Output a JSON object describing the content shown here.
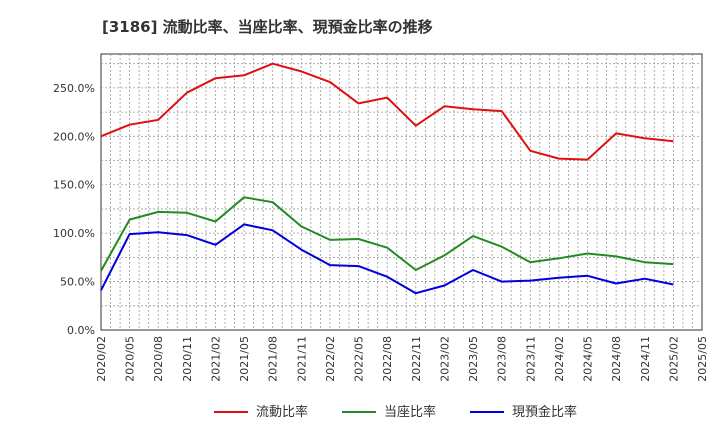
{
  "chart_data": {
    "type": "line",
    "title": "[3186]  流動比率、当座比率、現預金比率の推移",
    "xlabel": "",
    "ylabel": "",
    "ylim": [
      0,
      285
    ],
    "y_ticks": [
      0,
      50,
      100,
      150,
      200,
      250
    ],
    "y_tick_labels": [
      "0.0%",
      "50.0%",
      "100.0%",
      "150.0%",
      "200.0%",
      "250.0%"
    ],
    "x_tick_labels": [
      "2020/02",
      "2020/05",
      "2020/08",
      "2020/11",
      "2021/02",
      "2021/05",
      "2021/08",
      "2021/11",
      "2022/02",
      "2022/05",
      "2022/08",
      "2022/11",
      "2023/02",
      "2023/05",
      "2023/08",
      "2023/11",
      "2024/02",
      "2024/05",
      "2024/08",
      "2024/11",
      "2025/02",
      "2025/05"
    ],
    "categories": [
      "2020/02",
      "2020/05",
      "2020/08",
      "2020/11",
      "2021/02",
      "2021/05",
      "2021/08",
      "2021/11",
      "2022/02",
      "2022/05",
      "2022/08",
      "2022/11",
      "2023/02",
      "2023/05",
      "2023/08",
      "2023/11",
      "2024/02",
      "2024/05",
      "2024/08",
      "2024/11",
      "2025/02"
    ],
    "grid": true,
    "legend_position": "bottom",
    "series": [
      {
        "name": "流動比率",
        "color": "#dd1111",
        "values": [
          200,
          212,
          217,
          245,
          260,
          263,
          275,
          267,
          256,
          234,
          240,
          211,
          231,
          228,
          226,
          185,
          177,
          176,
          203,
          198,
          195
        ]
      },
      {
        "name": "当座比率",
        "color": "#228b22",
        "values": [
          61,
          114,
          122,
          121,
          112,
          137,
          132,
          107,
          93,
          94,
          85,
          62,
          77,
          97,
          86,
          70,
          74,
          79,
          76,
          70,
          68
        ]
      },
      {
        "name": "現預金比率",
        "color": "#0000dd",
        "values": [
          41,
          99,
          101,
          98,
          88,
          109,
          103,
          83,
          67,
          66,
          55,
          38,
          46,
          62,
          50,
          51,
          54,
          56,
          48,
          53,
          47
        ]
      }
    ]
  }
}
